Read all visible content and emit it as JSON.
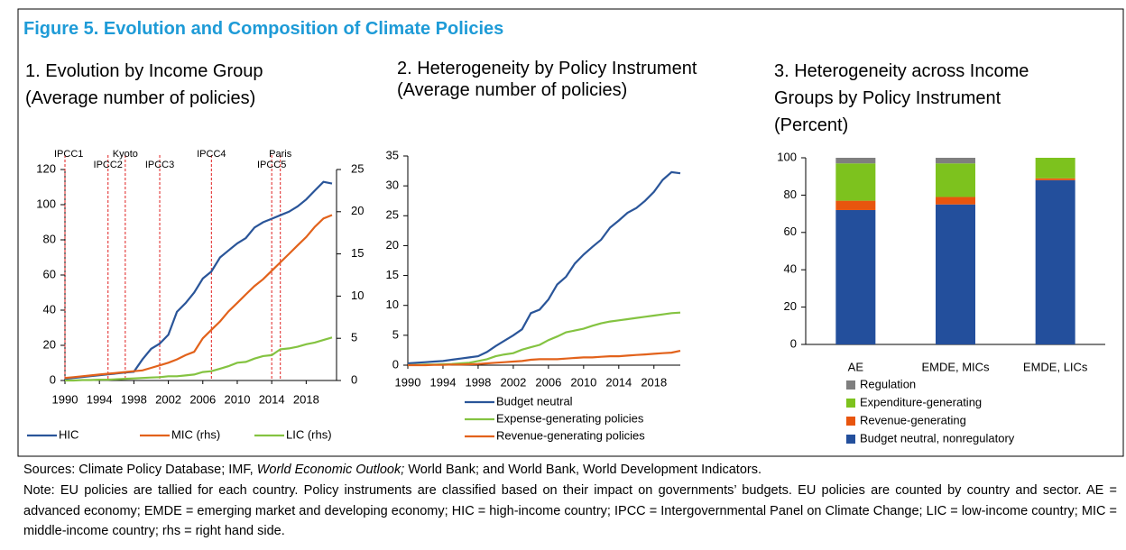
{
  "figure_title": "Figure 5. Evolution and Composition of Climate Policies",
  "sources": [
    "Sources: Climate Policy Database; IMF,",
    "World Economic Outlook;",
    "World Bank; and World Bank, World Development Indicators."
  ],
  "note": "Note: EU policies are tallied for each country. Policy instruments are classified based on their impact on governments’ budgets. EU policies are counted by country and sector. AE = advanced economy; EMDE = emerging market and developing economy; HIC = high-income country; IPCC = Intergovernmental Panel on Climate Change; LIC = low-income country; MIC = middle-income country; rhs = right hand side.",
  "chart_data": [
    {
      "type": "line",
      "title": "1. Evolution by Income Group",
      "subtitle": "(Average number of policies)",
      "x": [
        1990,
        1991,
        1992,
        1993,
        1994,
        1995,
        1996,
        1997,
        1998,
        1999,
        2000,
        2001,
        2002,
        2003,
        2004,
        2005,
        2006,
        2007,
        2008,
        2009,
        2010,
        2011,
        2012,
        2013,
        2014,
        2015,
        2016,
        2017,
        2018,
        2019,
        2020,
        2021
      ],
      "xlim": [
        1990,
        2021
      ],
      "xticks": [
        1990,
        1994,
        1998,
        2002,
        2006,
        2010,
        2014,
        2018
      ],
      "ylim": [
        0,
        120
      ],
      "yticks": [
        0,
        20,
        40,
        60,
        80,
        100,
        120
      ],
      "y2lim": [
        0,
        25
      ],
      "y2ticks": [
        0,
        5,
        10,
        15,
        20,
        25
      ],
      "series": [
        {
          "name": "HIC",
          "color": "#2a5599",
          "values": [
            1,
            1.5,
            2,
            2.5,
            3,
            3.5,
            4,
            4.5,
            5,
            12,
            18,
            21,
            26,
            39,
            44,
            50,
            58,
            62,
            70,
            74,
            78,
            81,
            87,
            90,
            92,
            94,
            96,
            99,
            103,
            108,
            113,
            112
          ]
        },
        {
          "name": "MIC (rhs)",
          "color": "#e2621b",
          "axis": "y2",
          "values": [
            0.3,
            0.4,
            0.5,
            0.6,
            0.7,
            0.8,
            0.9,
            1.0,
            1.1,
            1.2,
            1.5,
            1.8,
            2.1,
            2.5,
            3.0,
            3.4,
            5.0,
            6.0,
            7.0,
            8.2,
            9.2,
            10.2,
            11.2,
            12.0,
            13.0,
            14.0,
            15.0,
            16.0,
            17.0,
            18.2,
            19.2,
            19.6
          ]
        },
        {
          "name": "LIC (rhs)",
          "color": "#84c341",
          "axis": "y2",
          "values": [
            0,
            0,
            0.05,
            0.05,
            0.1,
            0.1,
            0.15,
            0.2,
            0.25,
            0.3,
            0.35,
            0.4,
            0.5,
            0.5,
            0.6,
            0.7,
            1.0,
            1.1,
            1.4,
            1.7,
            2.1,
            2.2,
            2.6,
            2.9,
            3.0,
            3.7,
            3.8,
            4.0,
            4.3,
            4.5,
            4.8,
            5.1
          ]
        }
      ],
      "events": [
        {
          "label": "IPCC1",
          "x": 1990
        },
        {
          "label": "IPCC2",
          "x": 1995
        },
        {
          "label": "Kyoto",
          "x": 1997
        },
        {
          "label": "IPCC3",
          "x": 2001
        },
        {
          "label": "IPCC4",
          "x": 2007
        },
        {
          "label": "IPCC5",
          "x": 2014
        },
        {
          "label": "Paris",
          "x": 2015
        }
      ],
      "event_color": "#e02020"
    },
    {
      "type": "line",
      "title": "2. Heterogeneity by Policy Instrument",
      "subtitle": "(Average number of policies)",
      "x": [
        1990,
        1991,
        1992,
        1993,
        1994,
        1995,
        1996,
        1997,
        1998,
        1999,
        2000,
        2001,
        2002,
        2003,
        2004,
        2005,
        2006,
        2007,
        2008,
        2009,
        2010,
        2011,
        2012,
        2013,
        2014,
        2015,
        2016,
        2017,
        2018,
        2019,
        2020,
        2021
      ],
      "xlim": [
        1990,
        2021
      ],
      "xticks": [
        1990,
        1994,
        1998,
        2002,
        2006,
        2010,
        2014,
        2018
      ],
      "ylim": [
        0,
        35
      ],
      "yticks": [
        0,
        5,
        10,
        15,
        20,
        25,
        30,
        35
      ],
      "series": [
        {
          "name": "Budget neutral",
          "color": "#2a5599",
          "values": [
            0.3,
            0.4,
            0.5,
            0.6,
            0.7,
            0.9,
            1.1,
            1.3,
            1.5,
            2.2,
            3.2,
            4.1,
            5.0,
            6.0,
            8.7,
            9.3,
            11.0,
            13.5,
            14.8,
            17.0,
            18.5,
            19.8,
            21.0,
            23.0,
            24.2,
            25.5,
            26.3,
            27.5,
            29.0,
            31.0,
            32.3,
            32.1
          ]
        },
        {
          "name": "Expense-generating policies",
          "color": "#84c341",
          "values": [
            0,
            0.05,
            0.1,
            0.1,
            0.15,
            0.2,
            0.3,
            0.4,
            0.7,
            1.0,
            1.5,
            1.8,
            2.0,
            2.6,
            3.0,
            3.4,
            4.2,
            4.8,
            5.5,
            5.8,
            6.1,
            6.6,
            7.0,
            7.3,
            7.5,
            7.7,
            7.9,
            8.1,
            8.3,
            8.5,
            8.7,
            8.8
          ]
        },
        {
          "name": "Revenue-generating policies",
          "color": "#e2621b",
          "values": [
            0,
            0,
            0,
            0.05,
            0.05,
            0.1,
            0.1,
            0.15,
            0.2,
            0.3,
            0.4,
            0.5,
            0.6,
            0.7,
            0.9,
            1.0,
            1.0,
            1.0,
            1.1,
            1.2,
            1.3,
            1.3,
            1.4,
            1.5,
            1.5,
            1.6,
            1.7,
            1.8,
            1.9,
            2.0,
            2.1,
            2.4
          ]
        }
      ]
    },
    {
      "type": "stacked_bar",
      "title": "3. Heterogeneity across Income Groups by Policy Instrument",
      "subtitle": "(Percent)",
      "categories": [
        "AE",
        "EMDE, MICs",
        "EMDE, LICs"
      ],
      "ylim": [
        0,
        100
      ],
      "yticks": [
        0,
        20,
        40,
        60,
        80,
        100
      ],
      "series": [
        {
          "name": "Budget neutral, nonregulatory",
          "color": "#234f9c",
          "values": [
            72,
            75,
            88
          ]
        },
        {
          "name": "Revenue-generating",
          "color": "#e8550e",
          "values": [
            5,
            4,
            1
          ]
        },
        {
          "name": "Expenditure-generating",
          "color": "#7dc21e",
          "values": [
            20,
            18,
            11
          ]
        },
        {
          "name": "Regulation",
          "color": "#7f7f7f",
          "values": [
            3,
            3,
            0
          ]
        }
      ]
    }
  ]
}
